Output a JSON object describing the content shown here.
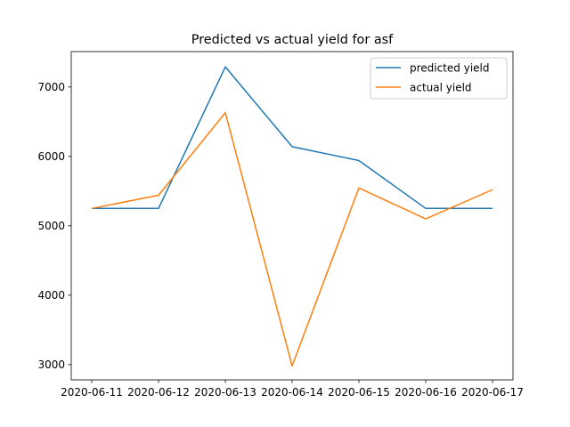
{
  "chart_data": {
    "type": "line",
    "title": "Predicted vs actual yield for asf",
    "xlabel": "",
    "ylabel": "",
    "x": [
      "2020-06-11",
      "2020-06-12",
      "2020-06-13",
      "2020-06-14",
      "2020-06-15",
      "2020-06-16",
      "2020-06-17"
    ],
    "series": [
      {
        "name": "predicted yield",
        "color": "#1f77b4",
        "values": [
          5250,
          5250,
          7290,
          6140,
          5940,
          5250,
          5250
        ]
      },
      {
        "name": "actual yield",
        "color": "#ff7f0e",
        "values": [
          5250,
          5440,
          6630,
          2980,
          5545,
          5100,
          5520
        ]
      }
    ],
    "ylim": [
      2780,
      7510
    ],
    "yticks": [
      3000,
      4000,
      5000,
      6000,
      7000
    ],
    "grid": false,
    "legend": "top-right"
  }
}
